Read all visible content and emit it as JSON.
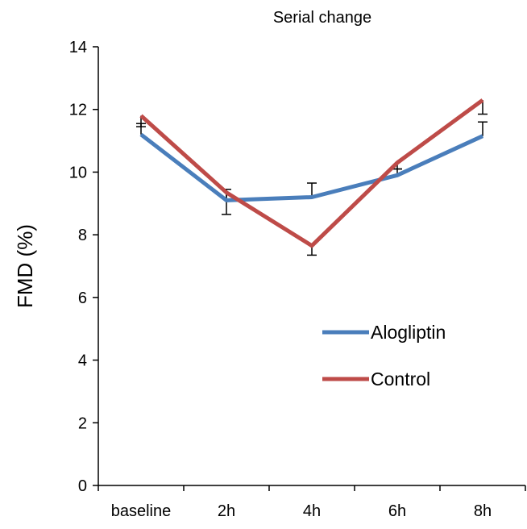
{
  "chart_data": {
    "type": "line",
    "title": "Serial change",
    "xlabel": "",
    "ylabel": "FMD (%)",
    "categories": [
      "baseline",
      "2h",
      "4h",
      "6h",
      "8h"
    ],
    "ylim": [
      0,
      14
    ],
    "yticks": [
      0,
      2,
      4,
      6,
      8,
      10,
      12,
      14
    ],
    "grid": false,
    "legend_position": "right-middle",
    "series": [
      {
        "name": "Alogliptin",
        "color": "#4A7EBB",
        "values": [
          11.2,
          9.1,
          9.2,
          9.9,
          11.15
        ],
        "error_upper": [
          0.35,
          0.35,
          0.45,
          0.2,
          0.45
        ]
      },
      {
        "name": "Control",
        "color": "#BE4B48",
        "values": [
          11.8,
          9.35,
          7.65,
          10.3,
          12.3
        ],
        "error_lower": [
          0.35,
          0.7,
          0.3,
          0.2,
          0.45
        ]
      }
    ]
  }
}
